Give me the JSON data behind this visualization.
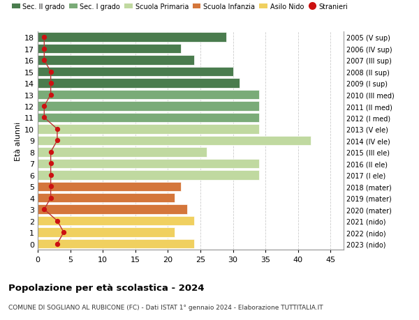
{
  "ages": [
    18,
    17,
    16,
    15,
    14,
    13,
    12,
    11,
    10,
    9,
    8,
    7,
    6,
    5,
    4,
    3,
    2,
    1,
    0
  ],
  "right_labels": [
    "2005 (V sup)",
    "2006 (IV sup)",
    "2007 (III sup)",
    "2008 (II sup)",
    "2009 (I sup)",
    "2010 (III med)",
    "2011 (II med)",
    "2012 (I med)",
    "2013 (V ele)",
    "2014 (IV ele)",
    "2015 (III ele)",
    "2016 (II ele)",
    "2017 (I ele)",
    "2018 (mater)",
    "2019 (mater)",
    "2020 (mater)",
    "2021 (nido)",
    "2022 (nido)",
    "2023 (nido)"
  ],
  "bar_values": [
    29,
    22,
    24,
    30,
    31,
    34,
    34,
    34,
    34,
    42,
    26,
    34,
    34,
    22,
    21,
    23,
    24,
    21,
    24
  ],
  "bar_colors": [
    "#4a7c4e",
    "#4a7c4e",
    "#4a7c4e",
    "#4a7c4e",
    "#4a7c4e",
    "#7aab78",
    "#7aab78",
    "#7aab78",
    "#c0d9a0",
    "#c0d9a0",
    "#c0d9a0",
    "#c0d9a0",
    "#c0d9a0",
    "#d4763b",
    "#d4763b",
    "#d4763b",
    "#f0d060",
    "#f0d060",
    "#f0d060"
  ],
  "stranieri_values": [
    1,
    1,
    1,
    2,
    2,
    2,
    1,
    1,
    3,
    3,
    2,
    2,
    2,
    2,
    2,
    1,
    3,
    4,
    3
  ],
  "legend_labels": [
    "Sec. II grado",
    "Sec. I grado",
    "Scuola Primaria",
    "Scuola Infanzia",
    "Asilo Nido",
    "Stranieri"
  ],
  "legend_colors": [
    "#4a7c4e",
    "#7aab78",
    "#c0d9a0",
    "#d4763b",
    "#f0d060",
    "#cc1111"
  ],
  "ylabel_left": "Età alunni",
  "title": "Popolazione per età scolastica - 2024",
  "subtitle": "COMUNE DI SOGLIANO AL RUBICONE (FC) - Dati ISTAT 1° gennaio 2024 - Elaborazione TUTTITALIA.IT",
  "xlim": [
    0,
    47
  ],
  "xticks": [
    0,
    5,
    10,
    15,
    20,
    25,
    30,
    35,
    40,
    45
  ],
  "background_color": "#ffffff",
  "grid_color": "#cccccc",
  "bar_height": 0.82,
  "stranieri_color": "#cc1111",
  "stranieri_line_color": "#bb3333"
}
